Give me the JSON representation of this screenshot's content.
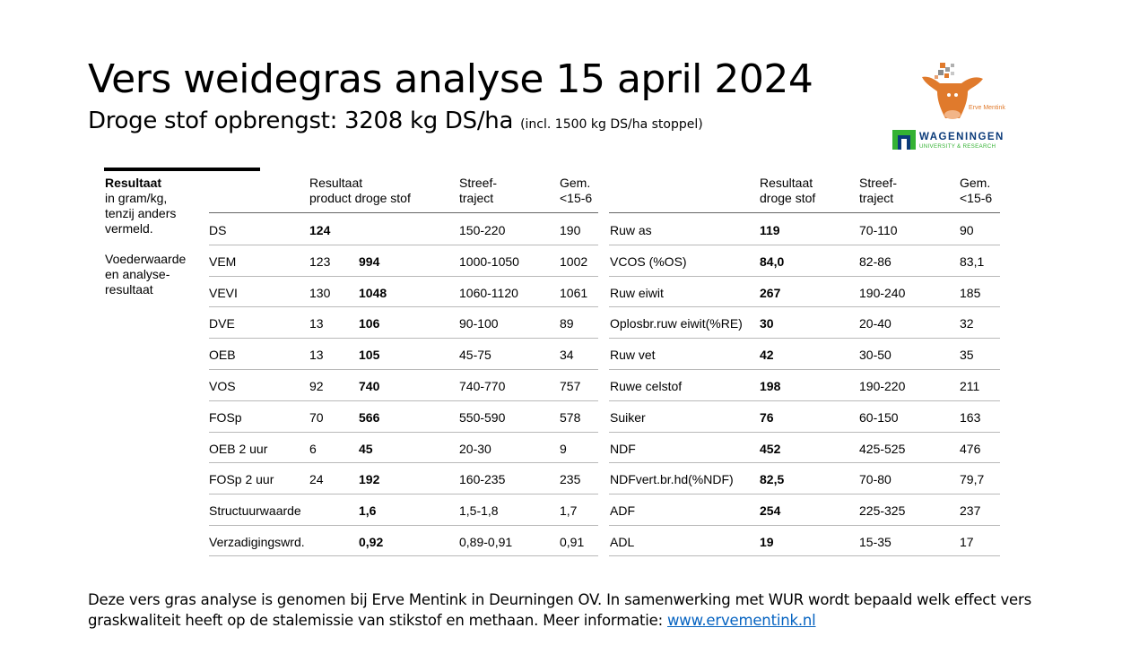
{
  "title": "Vers weidegras analyse 15 april 2024",
  "subtitle": "Droge stof opbrengst: 3208 kg DS/ha",
  "subtitle_note": "(incl. 1500 kg DS/ha stoppel)",
  "logos": {
    "cow_text": "Erve Mentink",
    "wur_main": "WAGENINGEN",
    "wur_sub": "UNIVERSITY & RESEARCH"
  },
  "legend": {
    "heading": "Resultaat",
    "line1": "in gram/kg,",
    "line2": "tenzij anders",
    "line3": "vermeld.",
    "line4": "Voederwaarde",
    "line5": "en analyse-",
    "line6": "resultaat"
  },
  "left_headers": {
    "result_1": "Resultaat",
    "result_2a": "product",
    "result_2b": "droge stof",
    "target_1": "Streef-",
    "target_2": "traject",
    "avg_1": "Gem.",
    "avg_2": "<15-6"
  },
  "right_headers": {
    "result_1": "Resultaat",
    "result_2": "droge stof",
    "target_1": "Streef-",
    "target_2": "traject",
    "avg_1": "Gem.",
    "avg_2": "<15-6"
  },
  "left_rows": [
    {
      "name": "DS",
      "product": "124",
      "dm": "",
      "target": "150-220",
      "avg": "190"
    },
    {
      "name": "VEM",
      "product": "123",
      "dm": "994",
      "target": "1000-1050",
      "avg": "1002"
    },
    {
      "name": "VEVI",
      "product": "130",
      "dm": "1048",
      "target": "1060-1120",
      "avg": "1061"
    },
    {
      "name": "DVE",
      "product": "13",
      "dm": "106",
      "target": "90-100",
      "avg": "89"
    },
    {
      "name": "OEB",
      "product": "13",
      "dm": "105",
      "target": "45-75",
      "avg": "34"
    },
    {
      "name": "VOS",
      "product": "92",
      "dm": "740",
      "target": "740-770",
      "avg": "757"
    },
    {
      "name": "FOSp",
      "product": "70",
      "dm": "566",
      "target": "550-590",
      "avg": "578"
    },
    {
      "name": "OEB 2 uur",
      "product": "6",
      "dm": "45",
      "target": "20-30",
      "avg": "9"
    },
    {
      "name": "FOSp 2 uur",
      "product": "24",
      "dm": "192",
      "target": "160-235",
      "avg": "235"
    },
    {
      "name": "Structuurwaarde",
      "product": "",
      "dm": "1,6",
      "target": "1,5-1,8",
      "avg": "1,7"
    },
    {
      "name": "Verzadigingswrd.",
      "product": "",
      "dm": "0,92",
      "target": "0,89-0,91",
      "avg": "0,91"
    }
  ],
  "right_rows": [
    {
      "name": "Ruw as",
      "dm": "119",
      "target": "70-110",
      "avg": "90"
    },
    {
      "name": "VCOS (%OS)",
      "dm": "84,0",
      "target": "82-86",
      "avg": "83,1"
    },
    {
      "name": "Ruw eiwit",
      "dm": "267",
      "target": "190-240",
      "avg": "185"
    },
    {
      "name": "Oplosbr.ruw eiwit(%RE)",
      "dm": "30",
      "target": "20-40",
      "avg": "32"
    },
    {
      "name": "Ruw vet",
      "dm": "42",
      "target": "30-50",
      "avg": "35"
    },
    {
      "name": "Ruwe celstof",
      "dm": "198",
      "target": "190-220",
      "avg": "211"
    },
    {
      "name": "Suiker",
      "dm": "76",
      "target": "60-150",
      "avg": "163"
    },
    {
      "name": "NDF",
      "dm": "452",
      "target": "425-525",
      "avg": "476"
    },
    {
      "name": "NDFvert.br.hd(%NDF)",
      "dm": "82,5",
      "target": "70-80",
      "avg": "79,7"
    },
    {
      "name": "ADF",
      "dm": "254",
      "target": "225-325",
      "avg": "237"
    },
    {
      "name": "ADL",
      "dm": "19",
      "target": "15-35",
      "avg": "17"
    }
  ],
  "footer": {
    "text": "Deze vers gras analyse is genomen bij Erve Mentink in Deurningen OV. In samenwerking met WUR wordt bepaald welk effect vers graskwaliteit heeft op de stalemissie van stikstof en methaan. Meer informatie: ",
    "link": "www.ervementink.nl"
  }
}
